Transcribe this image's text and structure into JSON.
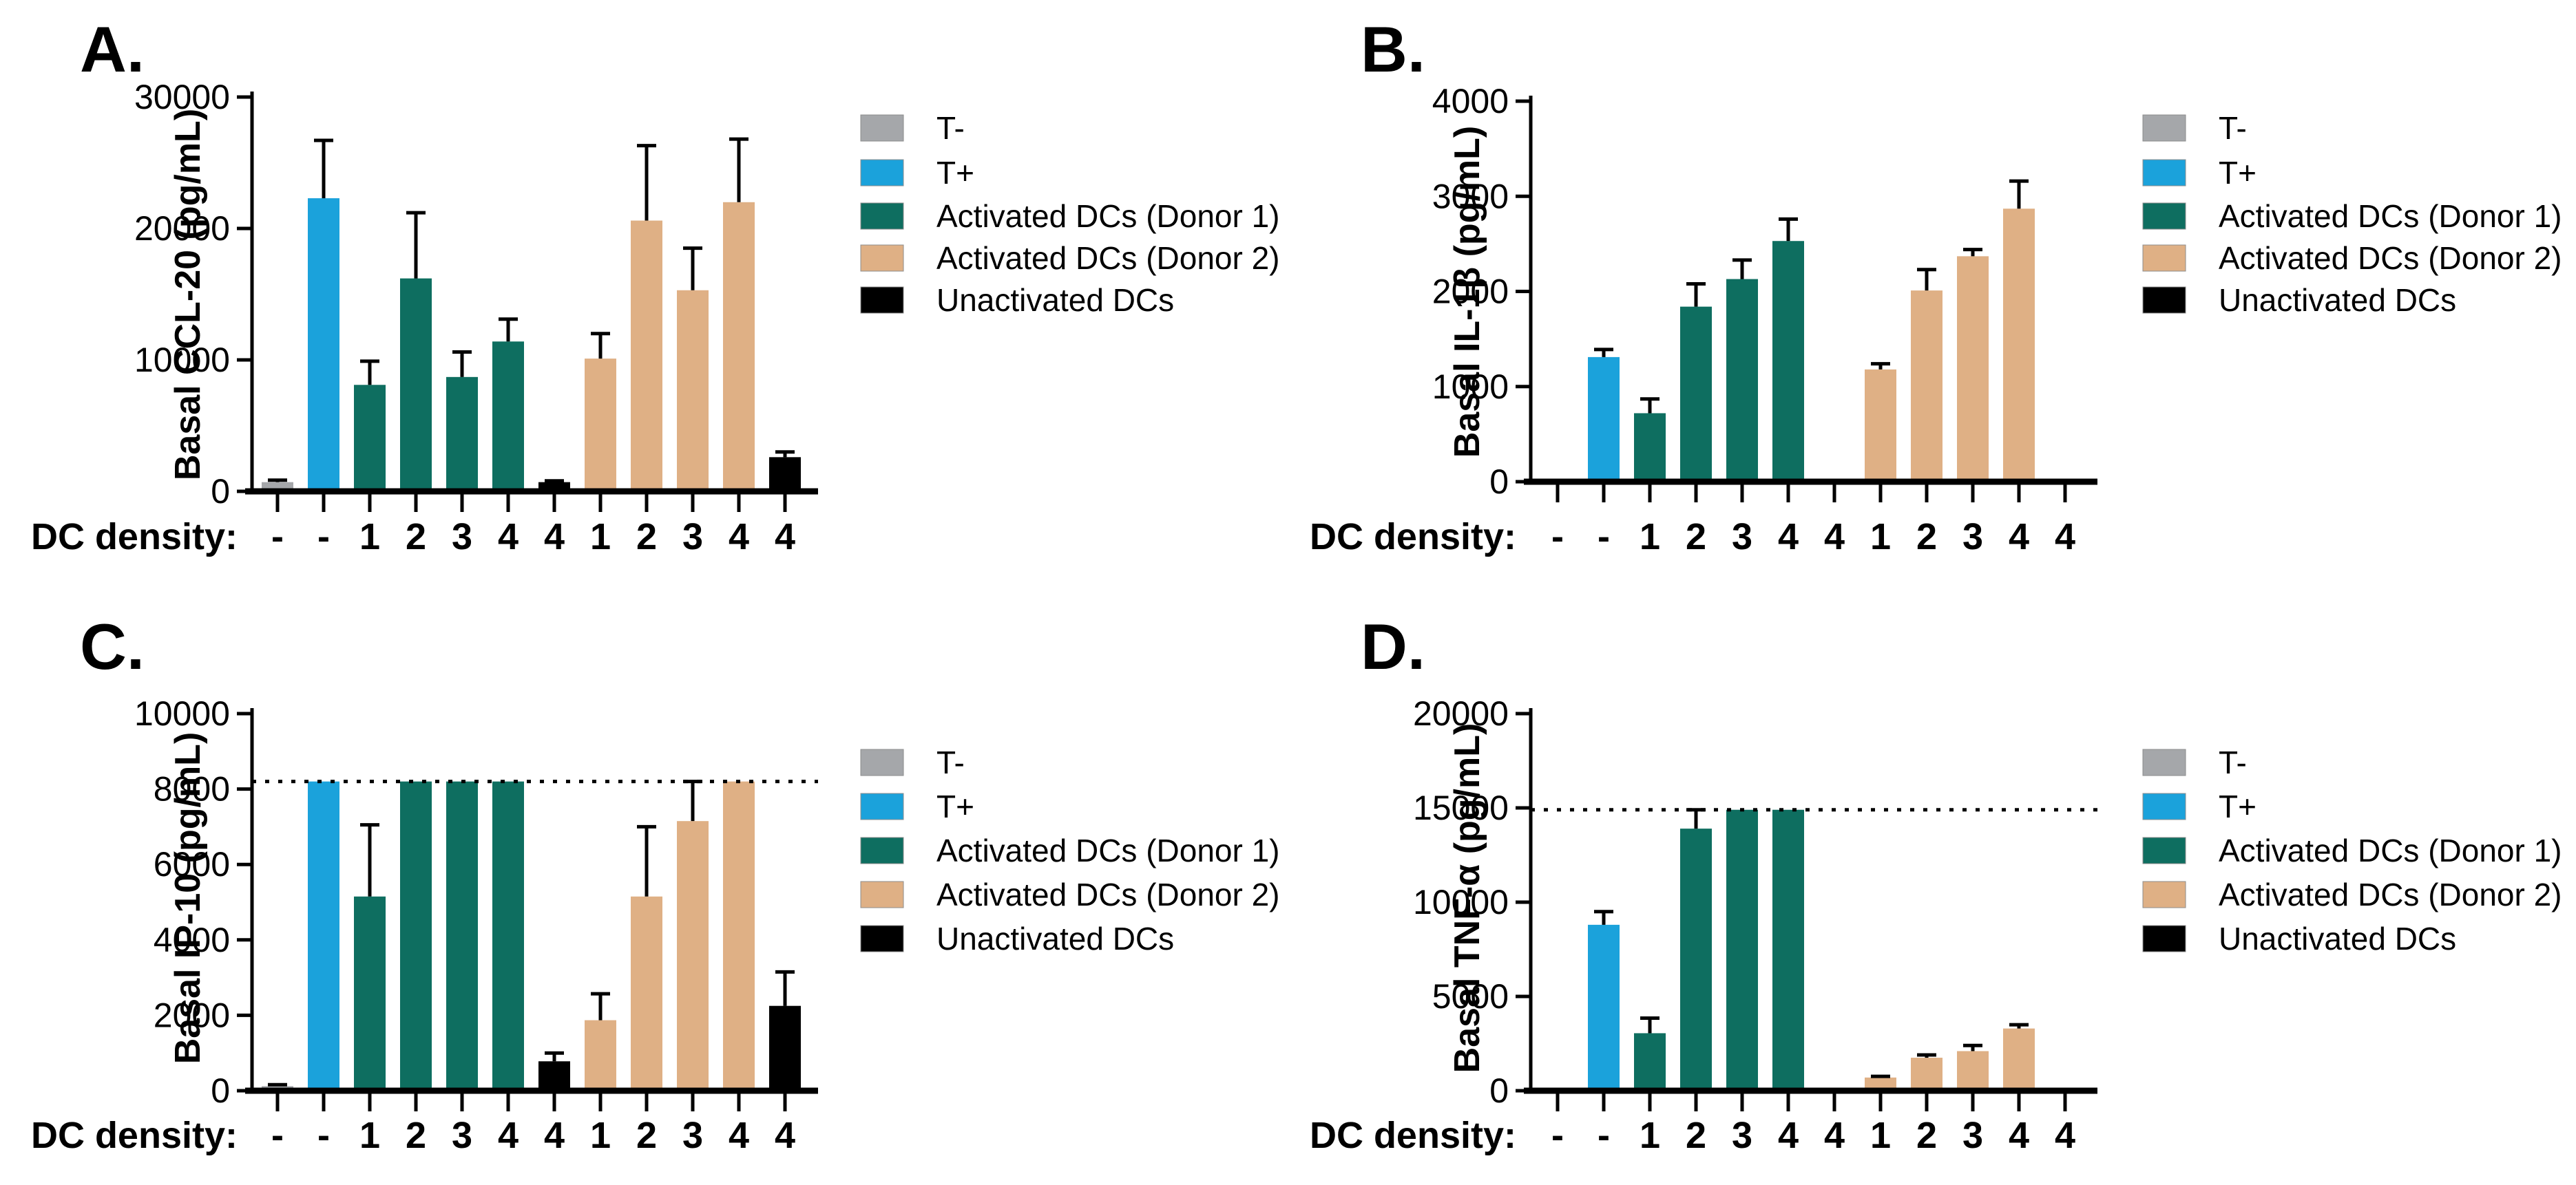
{
  "page": {
    "background": "#FFFFFF"
  },
  "x_axis_label": "DC density:",
  "legend": {
    "entries": [
      {
        "key": "T-",
        "label": "T-",
        "color": "#A5A7AA"
      },
      {
        "key": "T+",
        "label": "T+",
        "color": "#1BA2DB"
      },
      {
        "key": "D1",
        "label": "Activated DCs (Donor 1)",
        "color": "#0E6E60"
      },
      {
        "key": "D2",
        "label": "Activated DCs (Donor 2)",
        "color": "#DFB085"
      },
      {
        "key": "UN",
        "label": "Unactivated DCs",
        "color": "#000000"
      }
    ]
  },
  "series_colors": {
    "T-": "#A5A7AA",
    "T+": "#1BA2DB",
    "D1": "#0E6E60",
    "D2": "#DFB085",
    "UN": "#000000"
  },
  "chart_data": [
    {
      "panel": "A.",
      "type": "bar",
      "title": "",
      "ylabel": "Basal CCL-20  (pg/mL)",
      "xlabel": "DC density:",
      "ylim": [
        0,
        30000
      ],
      "yticks": [
        0,
        10000,
        20000,
        30000
      ],
      "reference_line": null,
      "grid": false,
      "legend_position": "right",
      "categories": [
        "-",
        "-",
        "1",
        "2",
        "3",
        "4",
        "4",
        "1",
        "2",
        "3",
        "4",
        "4"
      ],
      "series_key": [
        "T-",
        "T+",
        "D1",
        "D1",
        "D1",
        "D1",
        "UN",
        "D2",
        "D2",
        "D2",
        "D2",
        "UN"
      ],
      "values": [
        700,
        22300,
        8100,
        16200,
        8700,
        11400,
        700,
        10100,
        20600,
        15300,
        22000,
        2600
      ],
      "errors": [
        150,
        4400,
        1800,
        5000,
        1900,
        1700,
        100,
        1900,
        5700,
        3200,
        4800,
        400
      ]
    },
    {
      "panel": "B.",
      "type": "bar",
      "title": "",
      "ylabel": "Basal IL-1β (pg/mL)",
      "xlabel": "DC density:",
      "ylim": [
        0,
        4000
      ],
      "yticks": [
        0,
        1000,
        2000,
        3000,
        4000
      ],
      "reference_line": null,
      "grid": false,
      "legend_position": "right",
      "categories": [
        "-",
        "-",
        "1",
        "2",
        "3",
        "4",
        "4",
        "1",
        "2",
        "3",
        "4",
        "4"
      ],
      "series_key": [
        "T-",
        "T+",
        "D1",
        "D1",
        "D1",
        "D1",
        "UN",
        "D2",
        "D2",
        "D2",
        "D2",
        "UN"
      ],
      "values": [
        0,
        1310,
        720,
        1840,
        2130,
        2530,
        0,
        1180,
        2010,
        2370,
        2870,
        30
      ],
      "errors": [
        0,
        80,
        150,
        240,
        200,
        230,
        0,
        60,
        220,
        70,
        290,
        0
      ]
    },
    {
      "panel": "C.",
      "type": "bar",
      "title": "",
      "ylabel": "Basal IP-10  (pg/mL)",
      "xlabel": "DC density:",
      "ylim": [
        0,
        10000
      ],
      "yticks": [
        0,
        2000,
        4000,
        6000,
        8000,
        10000
      ],
      "reference_line": 8200,
      "grid": false,
      "legend_position": "right",
      "categories": [
        "-",
        "-",
        "1",
        "2",
        "3",
        "4",
        "4",
        "1",
        "2",
        "3",
        "4",
        "4"
      ],
      "series_key": [
        "T-",
        "T+",
        "D1",
        "D1",
        "D1",
        "D1",
        "UN",
        "D2",
        "D2",
        "D2",
        "D2",
        "UN"
      ],
      "values": [
        120,
        8200,
        5150,
        8200,
        8200,
        8200,
        780,
        1870,
        5150,
        7150,
        8200,
        2250
      ],
      "errors": [
        40,
        0,
        1900,
        0,
        0,
        0,
        220,
        700,
        1850,
        1050,
        0,
        900
      ]
    },
    {
      "panel": "D.",
      "type": "bar",
      "title": "",
      "ylabel": "Basal TNF-α  (pg/mL)",
      "xlabel": "DC density:",
      "ylim": [
        0,
        20000
      ],
      "yticks": [
        0,
        5000,
        10000,
        15000,
        20000
      ],
      "reference_line": 14900,
      "grid": false,
      "legend_position": "right",
      "categories": [
        "-",
        "-",
        "1",
        "2",
        "3",
        "4",
        "4",
        "1",
        "2",
        "3",
        "4",
        "4"
      ],
      "series_key": [
        "T-",
        "T+",
        "D1",
        "D1",
        "D1",
        "D1",
        "UN",
        "D2",
        "D2",
        "D2",
        "D2",
        "UN"
      ],
      "values": [
        0,
        8800,
        3050,
        13900,
        14900,
        14900,
        0,
        700,
        1750,
        2100,
        3300,
        0
      ],
      "errors": [
        0,
        700,
        800,
        1000,
        0,
        0,
        0,
        60,
        150,
        300,
        200,
        0
      ]
    }
  ]
}
